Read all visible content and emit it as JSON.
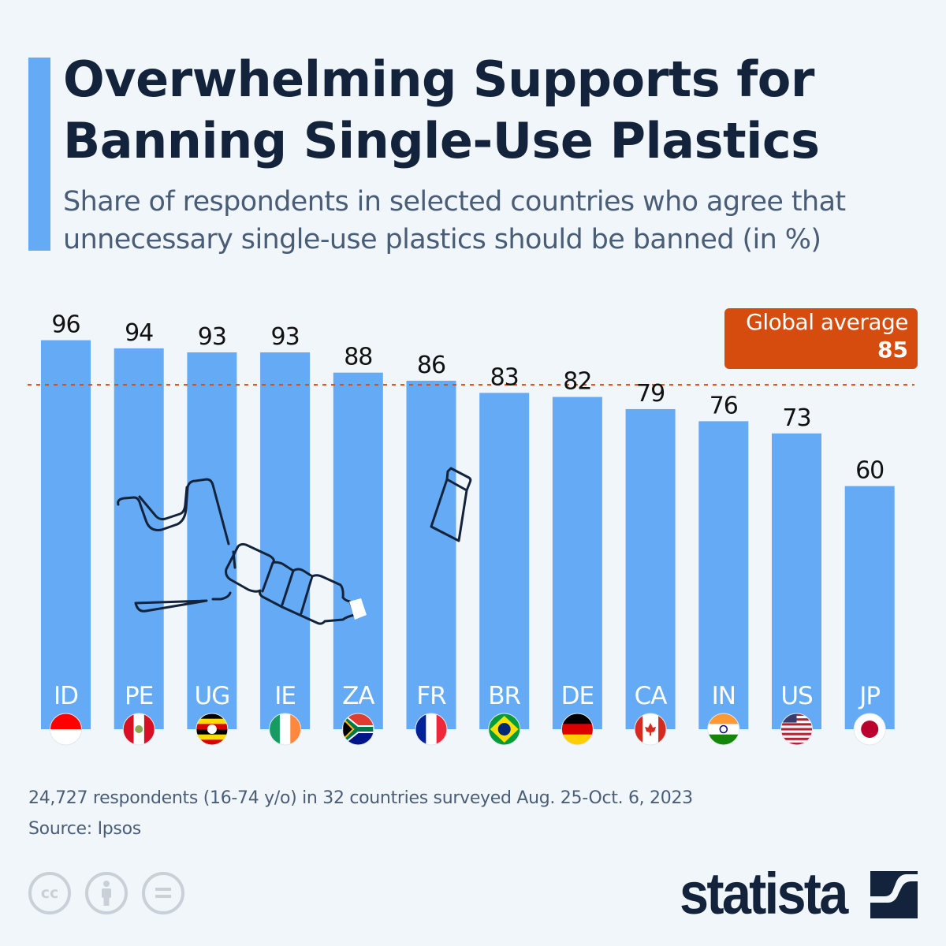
{
  "title": "Overwhelming Supports for Banning Single-Use Plastics",
  "subtitle": "Share of respondents in selected countries who agree that unnecessary single-use plastics should be banned (in %)",
  "global_average": {
    "label": "Global average",
    "value": "85"
  },
  "footer": {
    "note": "24,727 respondents (16-74 y/o) in 32 countries surveyed Aug. 25-Oct. 6, 2023",
    "source": "Source: Ipsos",
    "logo": "statista",
    "license_icons": [
      "cc-icon",
      "attribution-icon",
      "no-derivatives-icon"
    ]
  },
  "colors": {
    "bar": "#64aaf4",
    "title": "#13233b",
    "average": "#d64c0e",
    "background": "#f1f6fa"
  },
  "chart_data": {
    "type": "bar",
    "title": "Overwhelming Supports for Banning Single-Use Plastics",
    "categories": [
      "ID",
      "PE",
      "UG",
      "IE",
      "ZA",
      "FR",
      "BR",
      "DE",
      "CA",
      "IN",
      "US",
      "JP"
    ],
    "values": [
      96,
      94,
      93,
      93,
      88,
      86,
      83,
      82,
      79,
      76,
      73,
      60
    ],
    "value_labels": [
      "96",
      "94",
      "93",
      "93",
      "88",
      "86",
      "83",
      "82",
      "79",
      "76",
      "73",
      "60"
    ],
    "reference_line": {
      "label": "Global average",
      "value": 85
    },
    "ylim": [
      0,
      100
    ],
    "xlabel": "",
    "ylabel": "",
    "grid": false,
    "flags": [
      "indonesia-flag-icon",
      "peru-flag-icon",
      "uganda-flag-icon",
      "ireland-flag-icon",
      "south-africa-flag-icon",
      "france-flag-icon",
      "brazil-flag-icon",
      "germany-flag-icon",
      "canada-flag-icon",
      "india-flag-icon",
      "usa-flag-icon",
      "japan-flag-icon"
    ]
  }
}
